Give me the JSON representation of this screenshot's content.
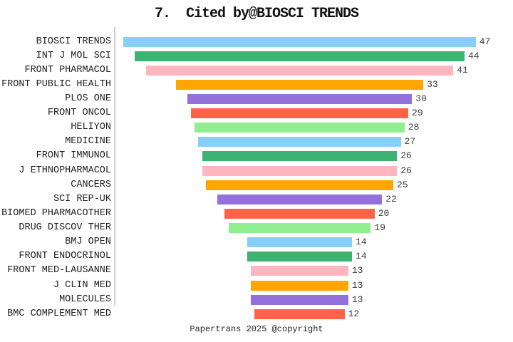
{
  "chart_data": {
    "type": "bar",
    "subtype": "funnel-centered-horizontal",
    "title": "7.  Cited by@BIOSCI TRENDS",
    "caption": "Papertrans 2025 @copyright",
    "orientation": "horizontal",
    "alignment": "center",
    "value_labels_shown": true,
    "grid": false,
    "legend": false,
    "xlim": [
      0,
      47
    ],
    "categories": [
      "BIOSCI TRENDS",
      "INT J MOL SCI",
      "FRONT PHARMACOL",
      "FRONT PUBLIC HEALTH",
      "PLOS ONE",
      "FRONT ONCOL",
      "HELIYON",
      "MEDICINE",
      "FRONT IMMUNOL",
      "J ETHNOPHARMACOL",
      "CANCERS",
      "SCI REP-UK",
      "BIOMED PHARMACOTHER",
      "DRUG DISCOV THER",
      "BMJ OPEN",
      "FRONT ENDOCRINOL",
      "FRONT MED-LAUSANNE",
      "J CLIN MED",
      "MOLECULES",
      "BMC COMPLEMENT MED"
    ],
    "values": [
      47,
      44,
      41,
      33,
      30,
      29,
      28,
      27,
      26,
      26,
      25,
      22,
      20,
      19,
      14,
      14,
      13,
      13,
      13,
      12
    ],
    "palette": [
      "#87CEFA",
      "#3CB371",
      "#FFB6C1",
      "#FFA500",
      "#9370DB",
      "#FF6347",
      "#90EE90"
    ],
    "bar_colors": [
      "#87CEFA",
      "#3CB371",
      "#FFB6C1",
      "#FFA500",
      "#9370DB",
      "#FF6347",
      "#90EE90",
      "#87CEFA",
      "#3CB371",
      "#FFB6C1",
      "#FFA500",
      "#9370DB",
      "#FF6347",
      "#90EE90",
      "#87CEFA",
      "#3CB371",
      "#FFB6C1",
      "#FFA500",
      "#9370DB",
      "#FF6347"
    ],
    "axis_line_color": "#cccccc",
    "label_color": "#1f1f1f",
    "value_label_color": "#3c3c3c",
    "title_color": "#111111",
    "background_color": "#ffffff"
  }
}
